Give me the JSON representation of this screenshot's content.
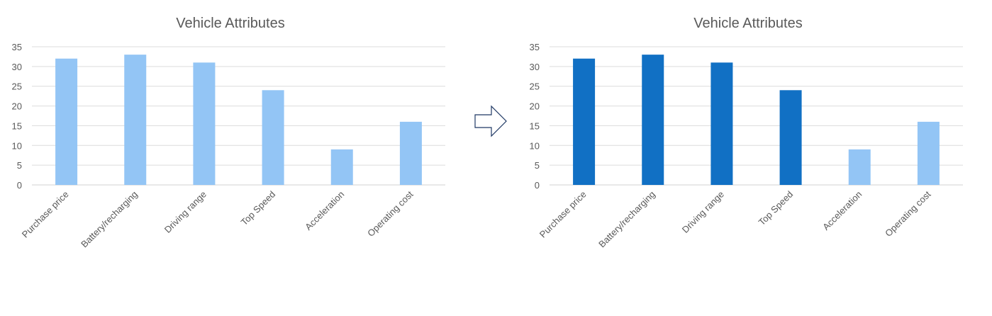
{
  "charts": [
    {
      "title": "Vehicle Attributes",
      "highlight_color": "#1170C4",
      "base_color": "#93C5F5",
      "highlighted": [
        false,
        false,
        false,
        false,
        false,
        false
      ]
    },
    {
      "title": "Vehicle Attributes",
      "highlight_color": "#1170C4",
      "base_color": "#93C5F5",
      "highlighted": [
        true,
        true,
        true,
        true,
        false,
        false
      ]
    }
  ],
  "chart_data": [
    {
      "type": "bar",
      "title": "Vehicle Attributes",
      "categories": [
        "Purchase price",
        "Battery/recharging",
        "Driving range",
        "Top Speed",
        "Acceleration",
        "Operating cost"
      ],
      "values": [
        32,
        33,
        31,
        24,
        9,
        16
      ],
      "ylim": [
        0,
        35
      ],
      "yticks": [
        0,
        5,
        10,
        15,
        20,
        25,
        30,
        35
      ],
      "grid": true
    },
    {
      "type": "bar",
      "title": "Vehicle Attributes",
      "categories": [
        "Purchase price",
        "Battery/recharging",
        "Driving range",
        "Top Speed",
        "Acceleration",
        "Operating cost"
      ],
      "values": [
        32,
        33,
        31,
        24,
        9,
        16
      ],
      "ylim": [
        0,
        35
      ],
      "yticks": [
        0,
        5,
        10,
        15,
        20,
        25,
        30,
        35
      ],
      "grid": true
    }
  ],
  "arrow": {
    "icon": "right-arrow-icon",
    "stroke": "#1F3864"
  }
}
